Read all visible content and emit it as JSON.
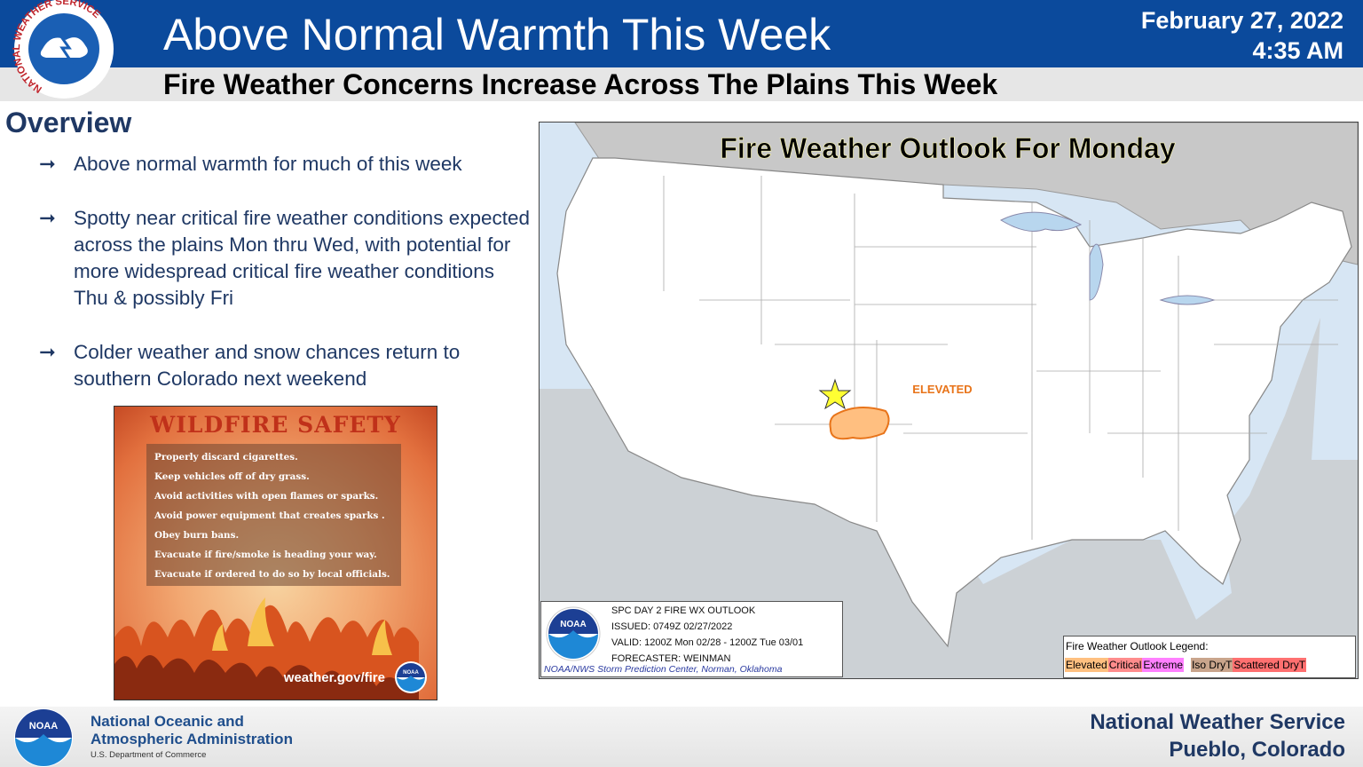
{
  "header": {
    "logo_text": "NATIONAL WEATHER SERVICE",
    "title": "Above Normal Warmth This Week",
    "subtitle": "Fire Weather Concerns Increase Across The Plains This Week",
    "date": "February 27, 2022",
    "time": "4:35 AM"
  },
  "overview": {
    "heading": "Overview",
    "bullets": [
      "Above normal warmth for much of this week",
      "Spotty near critical fire weather conditions expected across the plains Mon thru Wed, with potential for more widespread critical fire weather conditions Thu & possibly Fri",
      "Colder weather and snow chances return to southern Colorado next weekend"
    ]
  },
  "safety": {
    "title": "WILDFIRE SAFETY",
    "tips": [
      "Properly discard cigarettes.",
      "Keep vehicles off of dry grass.",
      "Avoid activities with open flames or sparks.",
      "Avoid power equipment that creates sparks .",
      "Obey burn bans.",
      "Evacuate if fire/smoke is heading your way.",
      "Evacuate if ordered to do so by local officials."
    ],
    "url": "weather.gov/fire",
    "logo_label": "NOAA"
  },
  "map": {
    "title": "Fire Weather Outlook For Monday",
    "area_label": "ELEVATED",
    "info_logo_label": "NOAA",
    "info": [
      "SPC DAY 2 FIRE WX OUTLOOK",
      "ISSUED: 0749Z 02/27/2022",
      "VALID: 1200Z Mon 02/28 - 1200Z Tue 03/01",
      "FORECASTER: WEINMAN"
    ],
    "credit": "NOAA/NWS Storm Prediction Center, Norman, Oklahoma",
    "legend": {
      "title": "Fire Weather Outlook Legend:",
      "items": [
        {
          "label": "Elevated",
          "color": "#ffc080"
        },
        {
          "label": "Critical",
          "color": "#ff8c8c"
        },
        {
          "label": "Extreme",
          "color": "#ff80ff"
        },
        {
          "label": "Iso DryT",
          "color": "#c9a58c"
        },
        {
          "label": "Scattered DryT",
          "color": "#ff7070"
        }
      ]
    }
  },
  "footer": {
    "logo_label": "NOAA",
    "agency": [
      "National Oceanic and",
      "Atmospheric Administration"
    ],
    "department": "U.S. Department of Commerce",
    "office": [
      "National Weather Service",
      "Pueblo, Colorado"
    ]
  }
}
